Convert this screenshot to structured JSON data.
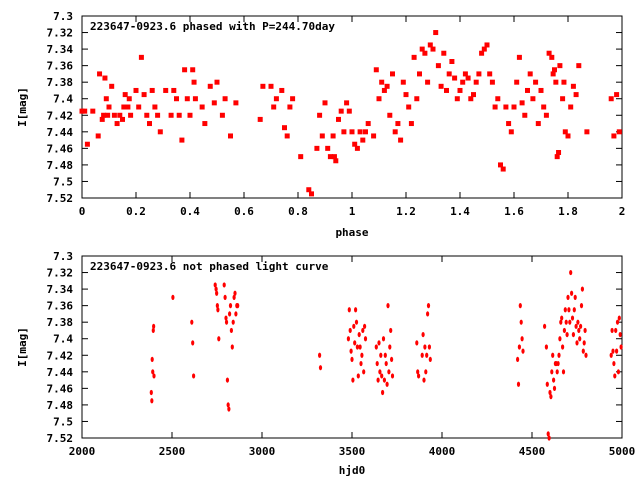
{
  "chart_data": [
    {
      "type": "scatter",
      "title": "223647-0923.6 phased with P=244.70day",
      "xlabel": "phase",
      "ylabel": "I[mag]",
      "xlim": [
        0,
        2
      ],
      "ylim": [
        7.52,
        7.3
      ],
      "y_inverted": true,
      "grid": false,
      "marker_color": "#ff0000",
      "x_ticks": [
        0,
        0.2,
        0.4,
        0.6,
        0.8,
        1,
        1.2,
        1.4,
        1.6,
        1.8,
        2
      ],
      "x_tick_labels": [
        "0",
        "0.2",
        "0.4",
        "0.6",
        "0.8",
        "1",
        "1.2",
        "1.4",
        "1.6",
        "1.8",
        "2"
      ],
      "y_ticks": [
        7.3,
        7.32,
        7.34,
        7.36,
        7.38,
        7.4,
        7.42,
        7.44,
        7.46,
        7.48,
        7.5,
        7.52
      ],
      "y_tick_labels": [
        "7.3",
        "7.32",
        "7.34",
        "7.36",
        "7.38",
        "7.4",
        "7.42",
        "7.44",
        "7.46",
        "7.48",
        "7.5",
        "7.52"
      ],
      "points": [
        [
          0.0,
          7.415
        ],
        [
          0.01,
          7.415
        ],
        [
          0.02,
          7.455
        ],
        [
          0.04,
          7.415
        ],
        [
          0.06,
          7.445
        ],
        [
          0.065,
          7.37
        ],
        [
          0.075,
          7.425
        ],
        [
          0.08,
          7.42
        ],
        [
          0.085,
          7.375
        ],
        [
          0.09,
          7.4
        ],
        [
          0.095,
          7.42
        ],
        [
          0.1,
          7.41
        ],
        [
          0.11,
          7.385
        ],
        [
          0.12,
          7.42
        ],
        [
          0.13,
          7.43
        ],
        [
          0.14,
          7.42
        ],
        [
          0.15,
          7.425
        ],
        [
          0.155,
          7.41
        ],
        [
          0.16,
          7.395
        ],
        [
          0.17,
          7.41
        ],
        [
          0.175,
          7.4
        ],
        [
          0.18,
          7.42
        ],
        [
          0.2,
          7.39
        ],
        [
          0.21,
          7.41
        ],
        [
          0.22,
          7.35
        ],
        [
          0.23,
          7.395
        ],
        [
          0.24,
          7.42
        ],
        [
          0.25,
          7.43
        ],
        [
          0.26,
          7.39
        ],
        [
          0.27,
          7.41
        ],
        [
          0.28,
          7.42
        ],
        [
          0.29,
          7.44
        ],
        [
          0.31,
          7.39
        ],
        [
          0.33,
          7.42
        ],
        [
          0.34,
          7.39
        ],
        [
          0.35,
          7.4
        ],
        [
          0.36,
          7.42
        ],
        [
          0.37,
          7.45
        ],
        [
          0.38,
          7.365
        ],
        [
          0.39,
          7.4
        ],
        [
          0.4,
          7.42
        ],
        [
          0.41,
          7.365
        ],
        [
          0.415,
          7.38
        ],
        [
          0.42,
          7.4
        ],
        [
          0.445,
          7.41
        ],
        [
          0.455,
          7.43
        ],
        [
          0.475,
          7.385
        ],
        [
          0.49,
          7.405
        ],
        [
          0.5,
          7.38
        ],
        [
          0.52,
          7.42
        ],
        [
          0.53,
          7.4
        ],
        [
          0.55,
          7.445
        ],
        [
          0.57,
          7.405
        ],
        [
          0.66,
          7.425
        ],
        [
          0.67,
          7.385
        ],
        [
          0.7,
          7.385
        ],
        [
          0.71,
          7.41
        ],
        [
          0.72,
          7.4
        ],
        [
          0.74,
          7.39
        ],
        [
          0.75,
          7.435
        ],
        [
          0.76,
          7.445
        ],
        [
          0.77,
          7.41
        ],
        [
          0.78,
          7.4
        ],
        [
          0.81,
          7.47
        ],
        [
          0.84,
          7.51
        ],
        [
          0.85,
          7.515
        ],
        [
          0.87,
          7.46
        ],
        [
          0.88,
          7.42
        ],
        [
          0.89,
          7.445
        ],
        [
          0.9,
          7.405
        ],
        [
          0.91,
          7.46
        ],
        [
          0.92,
          7.47
        ],
        [
          0.93,
          7.445
        ],
        [
          0.935,
          7.47
        ],
        [
          0.94,
          7.475
        ],
        [
          0.95,
          7.425
        ],
        [
          0.96,
          7.415
        ],
        [
          0.97,
          7.44
        ],
        [
          0.98,
          7.405
        ],
        [
          0.99,
          7.415
        ],
        [
          1.0,
          7.44
        ],
        [
          1.01,
          7.455
        ],
        [
          1.02,
          7.46
        ],
        [
          1.03,
          7.44
        ],
        [
          1.04,
          7.45
        ],
        [
          1.05,
          7.44
        ],
        [
          1.06,
          7.43
        ],
        [
          1.08,
          7.445
        ],
        [
          1.09,
          7.365
        ],
        [
          1.1,
          7.4
        ],
        [
          1.11,
          7.38
        ],
        [
          1.12,
          7.39
        ],
        [
          1.13,
          7.385
        ],
        [
          1.14,
          7.42
        ],
        [
          1.15,
          7.37
        ],
        [
          1.16,
          7.44
        ],
        [
          1.17,
          7.43
        ],
        [
          1.18,
          7.45
        ],
        [
          1.19,
          7.38
        ],
        [
          1.2,
          7.395
        ],
        [
          1.21,
          7.41
        ],
        [
          1.22,
          7.43
        ],
        [
          1.23,
          7.35
        ],
        [
          1.24,
          7.4
        ],
        [
          1.25,
          7.37
        ],
        [
          1.26,
          7.34
        ],
        [
          1.27,
          7.345
        ],
        [
          1.28,
          7.38
        ],
        [
          1.29,
          7.335
        ],
        [
          1.3,
          7.34
        ],
        [
          1.31,
          7.32
        ],
        [
          1.32,
          7.36
        ],
        [
          1.33,
          7.385
        ],
        [
          1.34,
          7.345
        ],
        [
          1.35,
          7.39
        ],
        [
          1.36,
          7.37
        ],
        [
          1.37,
          7.355
        ],
        [
          1.38,
          7.375
        ],
        [
          1.39,
          7.4
        ],
        [
          1.4,
          7.39
        ],
        [
          1.41,
          7.38
        ],
        [
          1.42,
          7.37
        ],
        [
          1.43,
          7.375
        ],
        [
          1.44,
          7.4
        ],
        [
          1.45,
          7.395
        ],
        [
          1.46,
          7.38
        ],
        [
          1.47,
          7.37
        ],
        [
          1.48,
          7.345
        ],
        [
          1.49,
          7.34
        ],
        [
          1.5,
          7.335
        ],
        [
          1.51,
          7.37
        ],
        [
          1.52,
          7.38
        ],
        [
          1.53,
          7.41
        ],
        [
          1.54,
          7.4
        ],
        [
          1.55,
          7.48
        ],
        [
          1.56,
          7.485
        ],
        [
          1.57,
          7.41
        ],
        [
          1.58,
          7.43
        ],
        [
          1.59,
          7.44
        ],
        [
          1.6,
          7.41
        ],
        [
          1.61,
          7.38
        ],
        [
          1.62,
          7.35
        ],
        [
          1.63,
          7.405
        ],
        [
          1.64,
          7.42
        ],
        [
          1.65,
          7.39
        ],
        [
          1.66,
          7.37
        ],
        [
          1.67,
          7.4
        ],
        [
          1.68,
          7.38
        ],
        [
          1.69,
          7.43
        ],
        [
          1.7,
          7.39
        ],
        [
          1.71,
          7.41
        ],
        [
          1.72,
          7.42
        ],
        [
          1.73,
          7.345
        ],
        [
          1.74,
          7.35
        ],
        [
          1.745,
          7.37
        ],
        [
          1.75,
          7.365
        ],
        [
          1.755,
          7.38
        ],
        [
          1.76,
          7.47
        ],
        [
          1.765,
          7.465
        ],
        [
          1.77,
          7.36
        ],
        [
          1.78,
          7.4
        ],
        [
          1.785,
          7.38
        ],
        [
          1.79,
          7.44
        ],
        [
          1.8,
          7.445
        ],
        [
          1.81,
          7.41
        ],
        [
          1.82,
          7.385
        ],
        [
          1.83,
          7.395
        ],
        [
          1.84,
          7.36
        ],
        [
          1.87,
          7.44
        ],
        [
          1.96,
          7.4
        ],
        [
          1.97,
          7.445
        ],
        [
          1.98,
          7.395
        ],
        [
          1.99,
          7.44
        ]
      ]
    },
    {
      "type": "scatter",
      "title": "223647-0923.6 not phased light curve",
      "xlabel": "hjd0",
      "ylabel": "I[mag]",
      "xlim": [
        2000,
        5000
      ],
      "ylim": [
        7.52,
        7.3
      ],
      "y_inverted": true,
      "grid": false,
      "marker_color": "#ff0000",
      "x_ticks": [
        2000,
        2500,
        3000,
        3500,
        4000,
        4500,
        5000
      ],
      "x_tick_labels": [
        "2000",
        "2500",
        "3000",
        "3500",
        "4000",
        "4500",
        "5000"
      ],
      "y_ticks": [
        7.3,
        7.32,
        7.34,
        7.36,
        7.38,
        7.4,
        7.42,
        7.44,
        7.46,
        7.48,
        7.5,
        7.52
      ],
      "y_tick_labels": [
        "7.3",
        "7.32",
        "7.34",
        "7.36",
        "7.38",
        "7.4",
        "7.42",
        "7.44",
        "7.46",
        "7.48",
        "7.5",
        "7.52"
      ],
      "points": [
        [
          2385,
          7.465
        ],
        [
          2388,
          7.475
        ],
        [
          2390,
          7.425
        ],
        [
          2393,
          7.44
        ],
        [
          2396,
          7.39
        ],
        [
          2398,
          7.385
        ],
        [
          2400,
          7.445
        ],
        [
          2505,
          7.35
        ],
        [
          2610,
          7.38
        ],
        [
          2615,
          7.405
        ],
        [
          2620,
          7.445
        ],
        [
          2740,
          7.335
        ],
        [
          2745,
          7.34
        ],
        [
          2748,
          7.345
        ],
        [
          2752,
          7.36
        ],
        [
          2755,
          7.365
        ],
        [
          2760,
          7.4
        ],
        [
          2790,
          7.335
        ],
        [
          2795,
          7.35
        ],
        [
          2800,
          7.375
        ],
        [
          2803,
          7.38
        ],
        [
          2808,
          7.45
        ],
        [
          2812,
          7.48
        ],
        [
          2816,
          7.485
        ],
        [
          2820,
          7.37
        ],
        [
          2825,
          7.36
        ],
        [
          2830,
          7.39
        ],
        [
          2835,
          7.41
        ],
        [
          2840,
          7.38
        ],
        [
          2845,
          7.35
        ],
        [
          2850,
          7.345
        ],
        [
          2855,
          7.37
        ],
        [
          2860,
          7.36
        ],
        [
          2865,
          7.36
        ],
        [
          3320,
          7.42
        ],
        [
          3325,
          7.435
        ],
        [
          3480,
          7.4
        ],
        [
          3485,
          7.365
        ],
        [
          3490,
          7.39
        ],
        [
          3495,
          7.415
        ],
        [
          3500,
          7.425
        ],
        [
          3505,
          7.45
        ],
        [
          3510,
          7.385
        ],
        [
          3515,
          7.405
        ],
        [
          3520,
          7.365
        ],
        [
          3525,
          7.38
        ],
        [
          3530,
          7.41
        ],
        [
          3535,
          7.445
        ],
        [
          3540,
          7.395
        ],
        [
          3545,
          7.41
        ],
        [
          3550,
          7.43
        ],
        [
          3555,
          7.42
        ],
        [
          3560,
          7.39
        ],
        [
          3565,
          7.44
        ],
        [
          3570,
          7.385
        ],
        [
          3575,
          7.4
        ],
        [
          3635,
          7.41
        ],
        [
          3640,
          7.43
        ],
        [
          3645,
          7.45
        ],
        [
          3650,
          7.405
        ],
        [
          3655,
          7.44
        ],
        [
          3660,
          7.42
        ],
        [
          3665,
          7.445
        ],
        [
          3670,
          7.465
        ],
        [
          3675,
          7.4
        ],
        [
          3680,
          7.45
        ],
        [
          3685,
          7.42
        ],
        [
          3690,
          7.43
        ],
        [
          3695,
          7.455
        ],
        [
          3700,
          7.36
        ],
        [
          3705,
          7.44
        ],
        [
          3710,
          7.41
        ],
        [
          3715,
          7.39
        ],
        [
          3720,
          7.425
        ],
        [
          3725,
          7.445
        ],
        [
          3860,
          7.405
        ],
        [
          3865,
          7.44
        ],
        [
          3870,
          7.445
        ],
        [
          3890,
          7.42
        ],
        [
          3895,
          7.395
        ],
        [
          3900,
          7.45
        ],
        [
          3905,
          7.41
        ],
        [
          3910,
          7.44
        ],
        [
          3915,
          7.42
        ],
        [
          3920,
          7.37
        ],
        [
          3925,
          7.36
        ],
        [
          3930,
          7.41
        ],
        [
          3935,
          7.425
        ],
        [
          4420,
          7.425
        ],
        [
          4425,
          7.455
        ],
        [
          4430,
          7.41
        ],
        [
          4435,
          7.36
        ],
        [
          4440,
          7.38
        ],
        [
          4445,
          7.4
        ],
        [
          4450,
          7.415
        ],
        [
          4570,
          7.385
        ],
        [
          4580,
          7.41
        ],
        [
          4585,
          7.455
        ],
        [
          4590,
          7.515
        ],
        [
          4595,
          7.52
        ],
        [
          4600,
          7.465
        ],
        [
          4605,
          7.47
        ],
        [
          4610,
          7.44
        ],
        [
          4615,
          7.42
        ],
        [
          4620,
          7.45
        ],
        [
          4625,
          7.46
        ],
        [
          4630,
          7.43
        ],
        [
          4635,
          7.43
        ],
        [
          4640,
          7.44
        ],
        [
          4645,
          7.43
        ],
        [
          4650,
          7.42
        ],
        [
          4655,
          7.4
        ],
        [
          4660,
          7.38
        ],
        [
          4665,
          7.375
        ],
        [
          4670,
          7.41
        ],
        [
          4675,
          7.44
        ],
        [
          4680,
          7.39
        ],
        [
          4685,
          7.365
        ],
        [
          4690,
          7.38
        ],
        [
          4695,
          7.395
        ],
        [
          4700,
          7.35
        ],
        [
          4705,
          7.365
        ],
        [
          4710,
          7.38
        ],
        [
          4715,
          7.32
        ],
        [
          4720,
          7.345
        ],
        [
          4725,
          7.375
        ],
        [
          4730,
          7.395
        ],
        [
          4735,
          7.365
        ],
        [
          4740,
          7.35
        ],
        [
          4745,
          7.385
        ],
        [
          4750,
          7.405
        ],
        [
          4755,
          7.38
        ],
        [
          4760,
          7.39
        ],
        [
          4765,
          7.4
        ],
        [
          4770,
          7.385
        ],
        [
          4775,
          7.36
        ],
        [
          4780,
          7.34
        ],
        [
          4785,
          7.415
        ],
        [
          4790,
          7.405
        ],
        [
          4795,
          7.39
        ],
        [
          4800,
          7.42
        ],
        [
          4940,
          7.42
        ],
        [
          4945,
          7.39
        ],
        [
          4950,
          7.415
        ],
        [
          4955,
          7.43
        ],
        [
          4960,
          7.445
        ],
        [
          4965,
          7.39
        ],
        [
          4970,
          7.415
        ],
        [
          4975,
          7.38
        ],
        [
          4980,
          7.44
        ],
        [
          4985,
          7.375
        ],
        [
          4990,
          7.395
        ],
        [
          4995,
          7.41
        ]
      ]
    }
  ]
}
